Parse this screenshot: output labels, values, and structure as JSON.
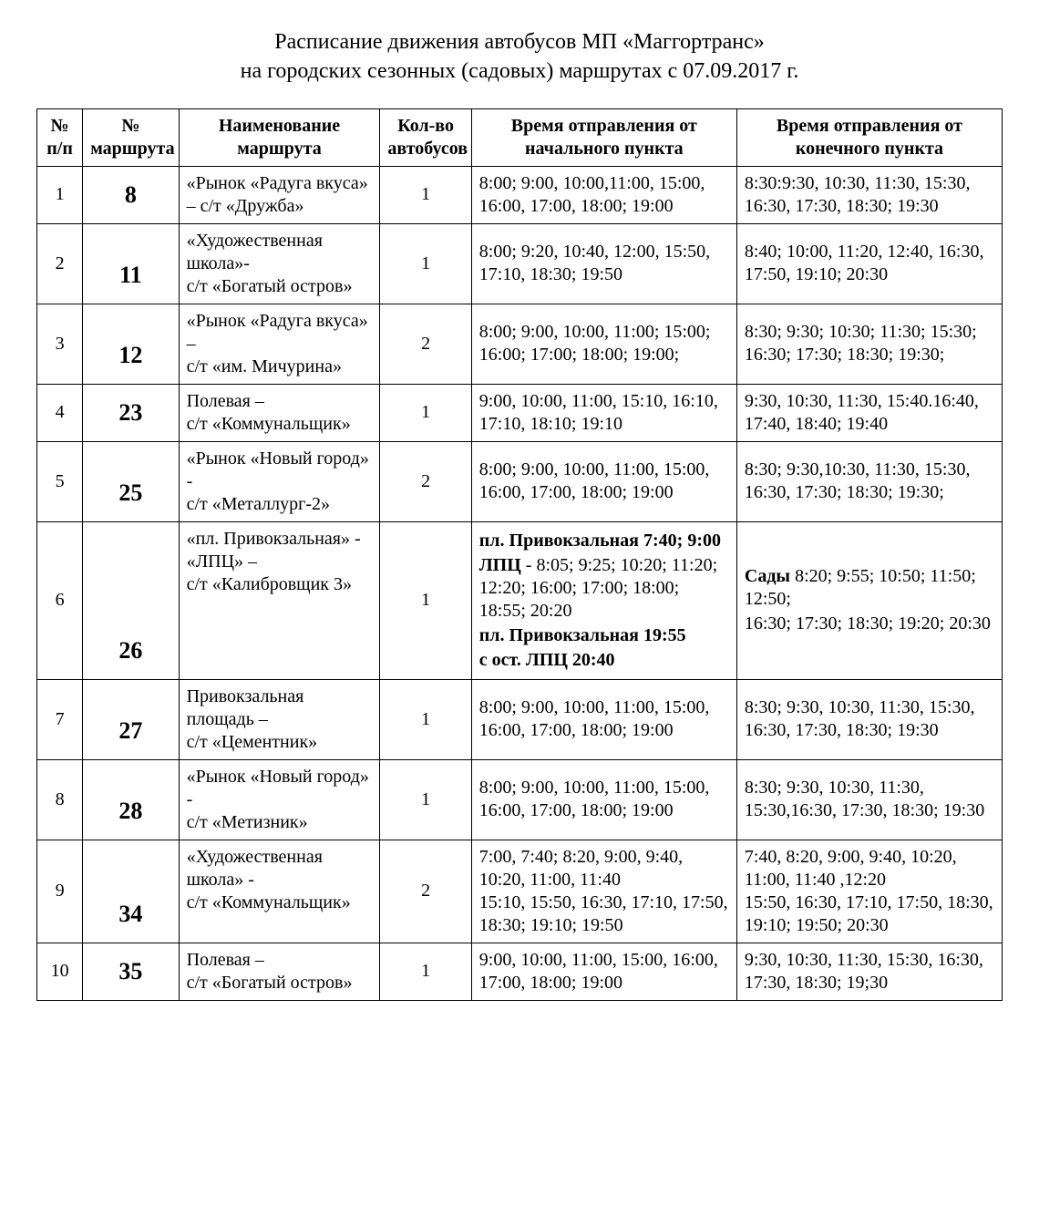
{
  "title_line1": "Расписание движения автобусов МП «Маггортранс»",
  "title_line2": "на городских сезонных (садовых) маршрутах с 07.09.2017 г.",
  "columns": {
    "pp": "№ п/п",
    "route": "№ маршрута",
    "name": "Наименование маршрута",
    "count": "Кол-во автобусов",
    "dep_start": "Время отправления от начального пункта",
    "dep_end": "Время отправления от конечного пункта"
  },
  "rows": [
    {
      "pp": "1",
      "route": "8",
      "name": "«Рынок «Радуга вкуса» –  с/т «Дружба»",
      "count": "1",
      "dep_start": " 8:00; 9:00, 10:00,11:00, 15:00, 16:00, 17:00, 18:00; 19:00",
      "dep_end": " 8:30:9:30, 10:30, 11:30, 15:30, 16:30, 17:30, 18:30; 19:30"
    },
    {
      "pp": "2",
      "route": "11",
      "name": "«Художественная школа»-\n с/т «Богатый остров»",
      "count": "1",
      "dep_start": "8:00; 9:20, 10:40, 12:00, 15:50, 17:10, 18:30; 19:50",
      "dep_end": " 8:40; 10:00, 11:20, 12:40, 16:30, 17:50, 19:10; 20:30"
    },
    {
      "pp": "3",
      "route": "12",
      "name": "«Рынок «Радуга вкуса» –\nс/т «им. Мичурина»",
      "count": "2",
      "dep_start": "8:00;  9:00, 10:00, 11:00;  15:00; 16:00; 17:00; 18:00; 19:00;",
      "dep_end": "8:30;  9:30; 10:30; 11:30; 15:30; 16:30; 17:30; 18:30; 19:30;"
    },
    {
      "pp": "4",
      "route": "23",
      "name": "Полевая –\nс/т «Коммунальщик»",
      "count": "1",
      "dep_start": "9:00, 10:00, 11:00, 15:10, 16:10, 17:10, 18:10; 19:10",
      "dep_end": "9:30, 10:30, 11:30, 15:40.16:40, 17:40, 18:40; 19:40"
    },
    {
      "pp": "5",
      "route": "25",
      "name": "«Рынок  «Новый город» -\nс/т  «Металлург-2»",
      "count": "2",
      "dep_start": "8:00;  9:00, 10:00,  11:00, 15:00, 16:00, 17:00, 18:00; 19:00",
      "dep_end": " 8:30; 9:30,10:30, 11:30, 15:30, 16:30, 17:30; 18:30; 19:30;"
    },
    {
      "pp": "6",
      "route": "26",
      "name": "«пл. Привокзальная» - «ЛПЦ» –\nс/т «Калибровщик 3»",
      "count": "1",
      "dep_start_segments": [
        {
          "bold": "пл. Привокзальная 7:40; 9:00"
        },
        {
          "bold": "ЛПЦ",
          "text": " - 8:05; 9:25; 10:20; 11:20; 12:20; 16:00; 17:00; 18:00; 18:55; 20:20"
        },
        {
          "bold": "пл. Привокзальная 19:55"
        },
        {
          "bold": "с ост. ЛПЦ  20:40"
        }
      ],
      "dep_end_segments": [
        {
          "bold": " Сады",
          "text": " 8:20; 9:55; 10:50; 11:50; 12:50;"
        },
        {
          "text": "16:30; 17:30; 18:30; 19:20; 20:30"
        }
      ]
    },
    {
      "pp": "7",
      "route": "27",
      "name": "Привокзальная площадь –\nс/т «Цементник»",
      "count": "1",
      "dep_start": "8:00; 9:00, 10:00, 11:00, 15:00, 16:00, 17:00, 18:00; 19:00",
      "dep_end": " 8:30; 9:30, 10:30, 11:30, 15:30, 16:30, 17:30, 18:30; 19:30"
    },
    {
      "pp": "8",
      "route": "28",
      "name": "«Рынок «Новый город» -\nс/т «Метизник»",
      "count": "1",
      "dep_start": "8:00; 9:00, 10:00, 11:00, 15:00, 16:00, 17:00, 18:00; 19:00",
      "dep_end": " 8:30; 9:30, 10:30, 11:30, 15:30,16:30, 17:30, 18:30; 19:30"
    },
    {
      "pp": "9",
      "route": "34",
      "name": "«Художественная школа» -\nс/т «Коммунальщик»",
      "count": "2",
      "dep_start": "7:00, 7:40;  8:20, 9:00, 9:40, 10:20, 11:00, 11:40\n15:10, 15:50, 16:30, 17:10, 17:50, 18:30; 19:10; 19:50",
      "dep_end": " 7:40, 8:20, 9:00, 9:40, 10:20, 11:00, 11:40 ,12:20\n15:50, 16:30, 17:10, 17:50, 18:30, 19:10; 19:50; 20:30"
    },
    {
      "pp": "10",
      "route": "35",
      "name": "Полевая –\nс/т «Богатый остров»",
      "count": "1",
      "dep_start": "9:00, 10:00, 11:00, 15:00, 16:00, 17:00, 18:00; 19:00",
      "dep_end": "9:30, 10:30, 11:30, 15:30, 16:30, 17:30, 18:30; 19;30"
    }
  ]
}
